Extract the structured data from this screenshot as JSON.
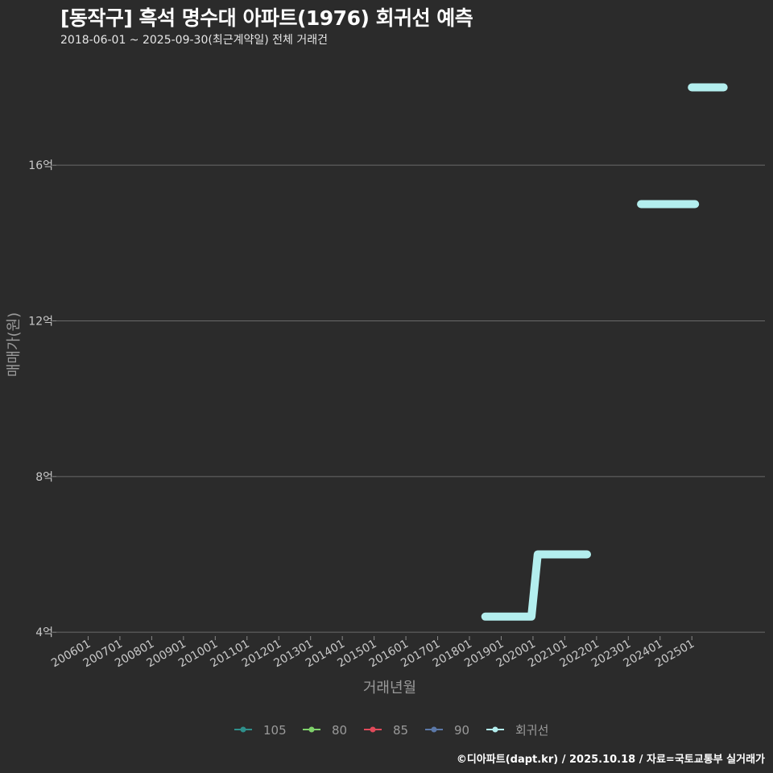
{
  "header": {
    "title": "[동작구] 흑석 명수대 아파트(1976) 회귀선 예측",
    "subtitle": "2018-06-01 ~ 2025-09-30(최근계약일) 전체 거래건"
  },
  "footer": {
    "credit": "©디아파트(dapt.kr) / 2025.10.18 / 자료=국토교통부 실거래가"
  },
  "chart_data": {
    "type": "line",
    "title": "[동작구] 흑석 명수대 아파트(1976) 회귀선 예측",
    "xlabel": "거래년월",
    "ylabel": "매매가(원)",
    "ylim": [
      3.9,
      18.9
    ],
    "yticks": [
      4,
      8,
      12,
      16
    ],
    "ytick_labels": [
      "4억",
      "8억",
      "12억",
      "16억"
    ],
    "xlim": [
      2005.0,
      2027.3
    ],
    "xticks": [
      2006,
      2007,
      2008,
      2009,
      2010,
      2011,
      2012,
      2013,
      2014,
      2015,
      2016,
      2017,
      2018,
      2019,
      2020,
      2021,
      2022,
      2023,
      2024,
      2025
    ],
    "xtick_labels": [
      "200601",
      "200701",
      "200801",
      "200901",
      "201001",
      "201101",
      "201201",
      "201301",
      "201401",
      "201501",
      "201601",
      "201701",
      "201801",
      "201901",
      "202001",
      "202101",
      "202201",
      "202301",
      "202401",
      "202501"
    ],
    "grid": true,
    "legend_position": "bottom",
    "legend": [
      {
        "name": "105",
        "color": "#2f8f8b"
      },
      {
        "name": "80",
        "color": "#7fd16b"
      },
      {
        "name": "85",
        "color": "#e04a5a"
      },
      {
        "name": "90",
        "color": "#5b78a8"
      },
      {
        "name": "회귀선",
        "color": "#b3eeee"
      }
    ],
    "series": [
      {
        "name": "회귀선",
        "color": "#b3eeee",
        "segments": [
          {
            "x": [
              2018.5,
              2019.95,
              2020.15,
              2021.7
            ],
            "y": [
              4.4,
              4.4,
              6.0,
              6.0
            ]
          },
          {
            "x": [
              2023.4,
              2025.1
            ],
            "y": [
              15.0,
              15.0
            ]
          },
          {
            "x": [
              2025.0,
              2026.0
            ],
            "y": [
              18.0,
              18.0
            ]
          }
        ]
      }
    ]
  }
}
